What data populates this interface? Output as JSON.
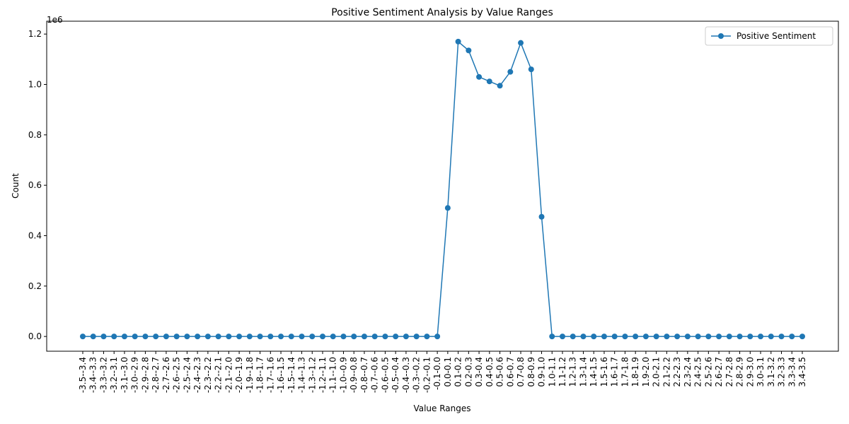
{
  "chart_data": {
    "type": "line",
    "title": "Positive Sentiment Analysis by Value Ranges",
    "x_label": "Value Ranges",
    "y_label": "Count",
    "y_offset_label": "1e6",
    "categories": [
      "-3.5--3.4",
      "-3.4--3.3",
      "-3.3--3.2",
      "-3.2--3.1",
      "-3.1--3.0",
      "-3.0--2.9",
      "-2.9--2.8",
      "-2.8--2.7",
      "-2.7--2.6",
      "-2.6--2.5",
      "-2.5--2.4",
      "-2.4--2.3",
      "-2.3--2.2",
      "-2.2--2.1",
      "-2.1--2.0",
      "-2.0--1.9",
      "-1.9--1.8",
      "-1.8--1.7",
      "-1.7--1.6",
      "-1.6--1.5",
      "-1.5--1.4",
      "-1.4--1.3",
      "-1.3--1.2",
      "-1.2--1.1",
      "-1.1--1.0",
      "-1.0--0.9",
      "-0.9--0.8",
      "-0.8--0.7",
      "-0.7--0.6",
      "-0.6--0.5",
      "-0.5--0.4",
      "-0.4--0.3",
      "-0.3--0.2",
      "-0.2--0.1",
      "-0.1-0.0",
      "0.0-0.1",
      "0.1-0.2",
      "0.2-0.3",
      "0.3-0.4",
      "0.4-0.5",
      "0.5-0.6",
      "0.6-0.7",
      "0.7-0.8",
      "0.8-0.9",
      "0.9-1.0",
      "1.0-1.1",
      "1.1-1.2",
      "1.2-1.3",
      "1.3-1.4",
      "1.4-1.5",
      "1.5-1.6",
      "1.6-1.7",
      "1.7-1.8",
      "1.8-1.9",
      "1.9-2.0",
      "2.0-2.1",
      "2.1-2.2",
      "2.2-2.3",
      "2.3-2.4",
      "2.4-2.5",
      "2.5-2.6",
      "2.6-2.7",
      "2.7-2.8",
      "2.8-2.9",
      "2.9-3.0",
      "3.0-3.1",
      "3.1-3.2",
      "3.2-3.3",
      "3.3-3.4",
      "3.4-3.5"
    ],
    "series": [
      {
        "name": "Positive Sentiment",
        "color": "#1f77b4",
        "values": [
          0,
          0,
          0,
          0,
          0,
          0,
          0,
          0,
          0,
          0,
          0,
          0,
          0,
          0,
          0,
          0,
          0,
          0,
          0,
          0,
          0,
          0,
          0,
          0,
          0,
          0,
          0,
          0,
          0,
          0,
          0,
          0,
          0,
          0,
          0,
          510000,
          1170000,
          1135000,
          1030000,
          1012000,
          995000,
          1050000,
          1165000,
          1060000,
          475000,
          0,
          0,
          0,
          0,
          0,
          0,
          0,
          0,
          0,
          0,
          0,
          0,
          0,
          0,
          0,
          0,
          0,
          0,
          0,
          0,
          0,
          0,
          0,
          0,
          0
        ]
      }
    ],
    "ylim": [
      -58500,
      1251000
    ],
    "yticks": [
      {
        "value": 0,
        "label": "0.0"
      },
      {
        "value": 200000,
        "label": "0.2"
      },
      {
        "value": 400000,
        "label": "0.4"
      },
      {
        "value": 600000,
        "label": "0.6"
      },
      {
        "value": 800000,
        "label": "0.8"
      },
      {
        "value": 1000000,
        "label": "1.0"
      },
      {
        "value": 1200000,
        "label": "1.2"
      }
    ],
    "legend": "upper right",
    "grid": false
  }
}
